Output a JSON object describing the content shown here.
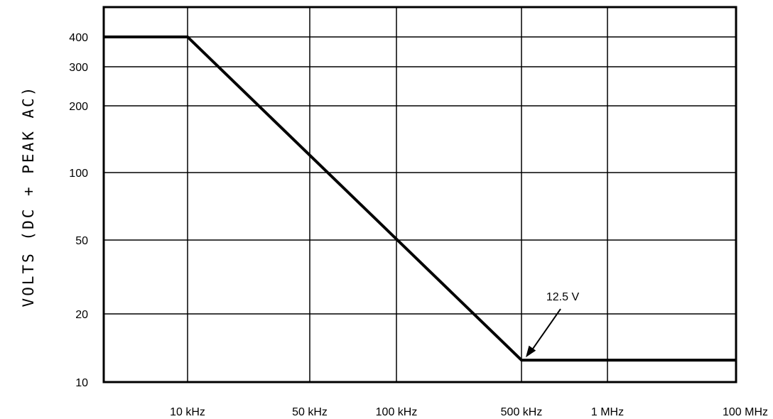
{
  "chart_data": {
    "type": "line",
    "title": "",
    "xlabel": "",
    "ylabel": "VOLTS (DC + PEAK AC)",
    "x_scale": "log",
    "y_scale": "log",
    "xlim": [
      4000,
      100000000
    ],
    "ylim": [
      10,
      480
    ],
    "grid": true,
    "x_ticks": [
      {
        "value": 10000,
        "label": "10 kHz"
      },
      {
        "value": 50000,
        "label": "50 kHz"
      },
      {
        "value": 100000,
        "label": "100 kHz"
      },
      {
        "value": 500000,
        "label": "500 kHz"
      },
      {
        "value": 1000000,
        "label": "1 MHz"
      },
      {
        "value": 100000000,
        "label": "100 MHz"
      }
    ],
    "y_ticks": [
      {
        "value": 10,
        "label": "10"
      },
      {
        "value": 20,
        "label": "20"
      },
      {
        "value": 50,
        "label": "50"
      },
      {
        "value": 100,
        "label": "100"
      },
      {
        "value": 200,
        "label": "200"
      },
      {
        "value": 300,
        "label": "300"
      },
      {
        "value": 400,
        "label": "400"
      }
    ],
    "series": [
      {
        "x": [
          4000,
          10000,
          500000,
          100000000
        ],
        "y": [
          400,
          400,
          12.5,
          12.5
        ]
      }
    ],
    "annotations": [
      {
        "text": "12.5 V",
        "x": 500000,
        "y": 12.5
      }
    ]
  }
}
